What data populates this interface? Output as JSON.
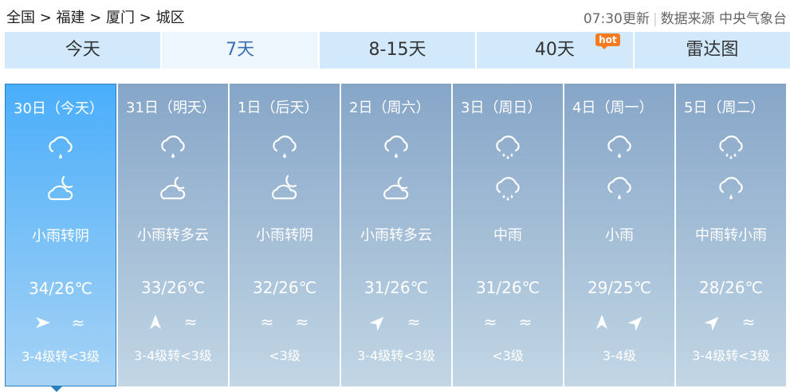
{
  "breadcrumb": "全国 > 福建 > 厦门 > 城区",
  "update_time": "07:30更新",
  "source": "数据来源 中央气象台",
  "tabs": [
    {
      "label": "今天"
    },
    {
      "label": "7天"
    },
    {
      "label": "8-15天"
    },
    {
      "label": "40天",
      "badge": "hot"
    },
    {
      "label": "雷达图"
    }
  ],
  "active_tab": "7天",
  "days": [
    {
      "date": "30日（今天）",
      "icons": [
        "light-rain",
        "cloudy-night"
      ],
      "desc": "小雨转阴",
      "temp": "34/26℃",
      "winds": [
        "arrow-e",
        "breeze"
      ],
      "level": "3-4级转<3级"
    },
    {
      "date": "31日（明天）",
      "icons": [
        "light-rain",
        "partly-cloudy-night"
      ],
      "desc": "小雨转多云",
      "temp": "33/26℃",
      "winds": [
        "arrow-n",
        "breeze"
      ],
      "level": "3-4级转<3级"
    },
    {
      "date": "1日（后天）",
      "icons": [
        "light-rain",
        "cloudy-night"
      ],
      "desc": "小雨转阴",
      "temp": "32/26℃",
      "winds": [
        "breeze",
        "breeze"
      ],
      "level": "<3级"
    },
    {
      "date": "2日（周六）",
      "icons": [
        "light-rain",
        "partly-cloudy-night"
      ],
      "desc": "小雨转多云",
      "temp": "31/26℃",
      "winds": [
        "arrow-ne",
        "breeze"
      ],
      "level": "3-4级转<3级"
    },
    {
      "date": "3日（周日）",
      "icons": [
        "moderate-rain",
        "moderate-rain"
      ],
      "desc": "中雨",
      "temp": "31/26℃",
      "winds": [
        "breeze",
        "breeze"
      ],
      "level": "<3级"
    },
    {
      "date": "4日（周一）",
      "icons": [
        "light-rain",
        "light-rain"
      ],
      "desc": "小雨",
      "temp": "29/25℃",
      "winds": [
        "arrow-n",
        "arrow-ne"
      ],
      "level": "3-4级"
    },
    {
      "date": "5日（周二）",
      "icons": [
        "moderate-rain",
        "light-rain"
      ],
      "desc": "中雨转小雨",
      "temp": "28/26℃",
      "winds": [
        "arrow-ne",
        "breeze"
      ],
      "level": "3-4级转<3级"
    }
  ]
}
